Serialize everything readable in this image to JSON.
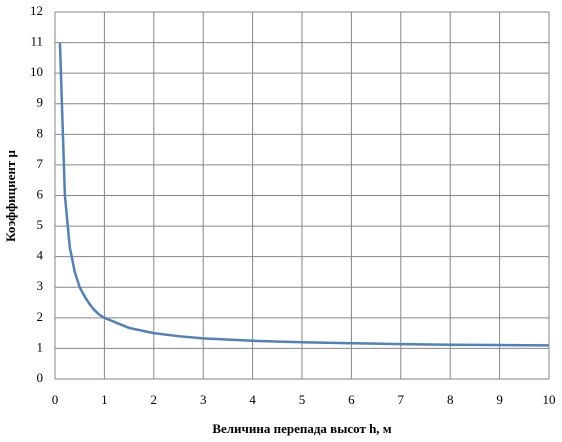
{
  "chart_data": {
    "type": "line",
    "x_label": "Величина перепада высот h, м",
    "y_label": "Коэффициент μ",
    "x": [
      0.1,
      0.2,
      0.3,
      0.4,
      0.5,
      0.6,
      0.7,
      0.8,
      0.9,
      1,
      1.5,
      2,
      2.5,
      3,
      4,
      5,
      6,
      7,
      8,
      9,
      10
    ],
    "series": [
      {
        "color": "#4f81bd",
        "values": [
          11,
          6,
          4.3,
          3.5,
          3.0,
          2.7,
          2.45,
          2.25,
          2.1,
          2.0,
          1.67,
          1.5,
          1.4,
          1.33,
          1.25,
          1.2,
          1.17,
          1.14,
          1.12,
          1.11,
          1.1
        ]
      }
    ],
    "xlim": [
      0,
      10
    ],
    "xticks": [
      0,
      1,
      2,
      3,
      4,
      5,
      6,
      7,
      8,
      9,
      10
    ],
    "ylim": [
      0,
      12
    ],
    "yticks": [
      0,
      1,
      2,
      3,
      4,
      5,
      6,
      7,
      8,
      9,
      10,
      11,
      12
    ],
    "grid": true
  }
}
